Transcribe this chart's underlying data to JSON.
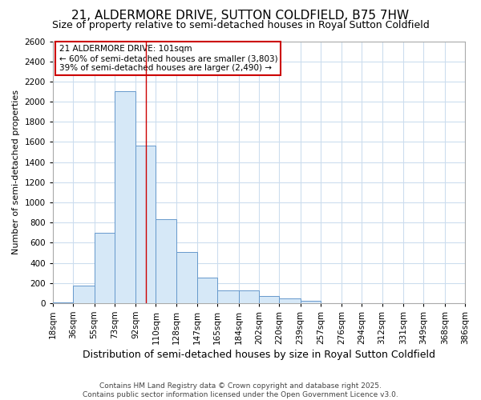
{
  "title": "21, ALDERMORE DRIVE, SUTTON COLDFIELD, B75 7HW",
  "subtitle": "Size of property relative to semi-detached houses in Royal Sutton Coldfield",
  "xlabel": "Distribution of semi-detached houses by size in Royal Sutton Coldfield",
  "ylabel": "Number of semi-detached properties",
  "footer_line1": "Contains HM Land Registry data © Crown copyright and database right 2025.",
  "footer_line2": "Contains public sector information licensed under the Open Government Licence v3.0.",
  "bin_labels": [
    "18sqm",
    "36sqm",
    "55sqm",
    "73sqm",
    "92sqm",
    "110sqm",
    "128sqm",
    "147sqm",
    "165sqm",
    "184sqm",
    "202sqm",
    "220sqm",
    "239sqm",
    "257sqm",
    "276sqm",
    "294sqm",
    "312sqm",
    "331sqm",
    "349sqm",
    "368sqm",
    "386sqm"
  ],
  "bar_values": [
    10,
    175,
    700,
    2100,
    1560,
    830,
    510,
    255,
    130,
    130,
    70,
    50,
    20,
    0,
    0,
    0,
    0,
    0,
    0,
    0,
    0
  ],
  "bin_edges": [
    18,
    36,
    55,
    73,
    92,
    110,
    128,
    147,
    165,
    184,
    202,
    220,
    239,
    257,
    276,
    294,
    312,
    331,
    349,
    368,
    386
  ],
  "bar_color": "#d6e8f7",
  "bar_edge_color": "#6699cc",
  "property_size": 101,
  "vline_color": "#cc0000",
  "annotation_text_line1": "21 ALDERMORE DRIVE: 101sqm",
  "annotation_text_line2": "← 60% of semi-detached houses are smaller (3,803)",
  "annotation_text_line3": "39% of semi-detached houses are larger (2,490) →",
  "annotation_box_color": "#cc0000",
  "ylim": [
    0,
    2600
  ],
  "yticks": [
    0,
    200,
    400,
    600,
    800,
    1000,
    1200,
    1400,
    1600,
    1800,
    2000,
    2200,
    2400,
    2600
  ],
  "bg_color": "#ffffff",
  "grid_color": "#ccddee",
  "title_fontsize": 11,
  "subtitle_fontsize": 9,
  "xlabel_fontsize": 9,
  "ylabel_fontsize": 8,
  "tick_fontsize": 7.5,
  "footer_fontsize": 6.5
}
